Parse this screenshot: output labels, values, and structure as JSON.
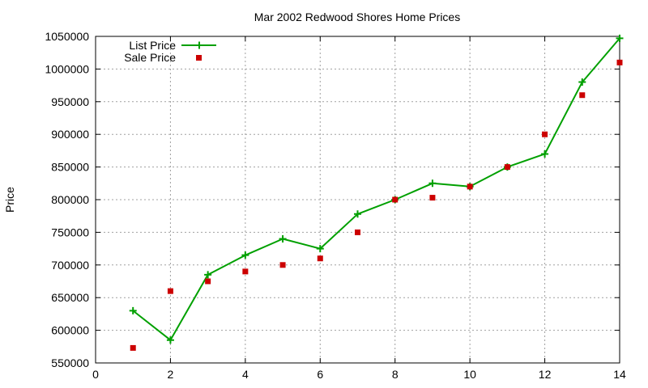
{
  "chart_data": {
    "type": "line",
    "title": "Mar 2002 Redwood Shores Home Prices",
    "xlabel": "",
    "ylabel": "Price",
    "xlim": [
      0,
      14
    ],
    "ylim": [
      550000,
      1050000
    ],
    "xticks": [
      0,
      2,
      4,
      6,
      8,
      10,
      12,
      14
    ],
    "yticks": [
      550000,
      600000,
      650000,
      700000,
      750000,
      800000,
      850000,
      900000,
      950000,
      1000000,
      1050000
    ],
    "grid": true,
    "legend_position": "top-left",
    "series": [
      {
        "name": "List Price",
        "style": "line-with-plus-markers",
        "color": "#00a000",
        "x": [
          1,
          2,
          3,
          4,
          5,
          6,
          7,
          8,
          9,
          10,
          11,
          12,
          13,
          14
        ],
        "y": [
          630000,
          585000,
          685000,
          715000,
          740000,
          725000,
          778000,
          800000,
          825000,
          820000,
          850000,
          870000,
          980000,
          1047000
        ]
      },
      {
        "name": "Sale Price",
        "style": "square-markers",
        "color": "#cc0000",
        "x": [
          1,
          2,
          3,
          4,
          5,
          6,
          7,
          8,
          9,
          10,
          11,
          12,
          13,
          14
        ],
        "y": [
          573000,
          660000,
          675000,
          690000,
          700000,
          710000,
          750000,
          800000,
          803000,
          820000,
          850000,
          900000,
          960000,
          1010000
        ]
      }
    ]
  }
}
